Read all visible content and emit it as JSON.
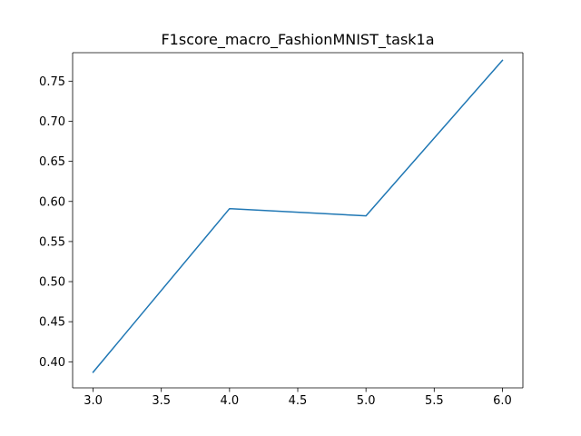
{
  "chart_data": {
    "type": "line",
    "title": "F1score_macro_FashionMNIST_task1a",
    "xlabel": "",
    "ylabel": "",
    "x": [
      3.0,
      4.0,
      5.0,
      6.0
    ],
    "series": [
      {
        "values": [
          0.387,
          0.591,
          0.582,
          0.776
        ],
        "color": "#1f77b4"
      }
    ],
    "xlim": [
      2.85,
      6.15
    ],
    "ylim": [
      0.3675,
      0.7855
    ],
    "xticks": [
      3.0,
      3.5,
      4.0,
      4.5,
      5.0,
      5.5,
      6.0
    ],
    "xtick_labels": [
      "3.0",
      "3.5",
      "4.0",
      "4.5",
      "5.0",
      "5.5",
      "6.0"
    ],
    "yticks": [
      0.4,
      0.45,
      0.5,
      0.55,
      0.6,
      0.65,
      0.7,
      0.75
    ],
    "ytick_labels": [
      "0.40",
      "0.45",
      "0.50",
      "0.55",
      "0.60",
      "0.65",
      "0.70",
      "0.75"
    ],
    "grid": false,
    "legend": "none"
  }
}
